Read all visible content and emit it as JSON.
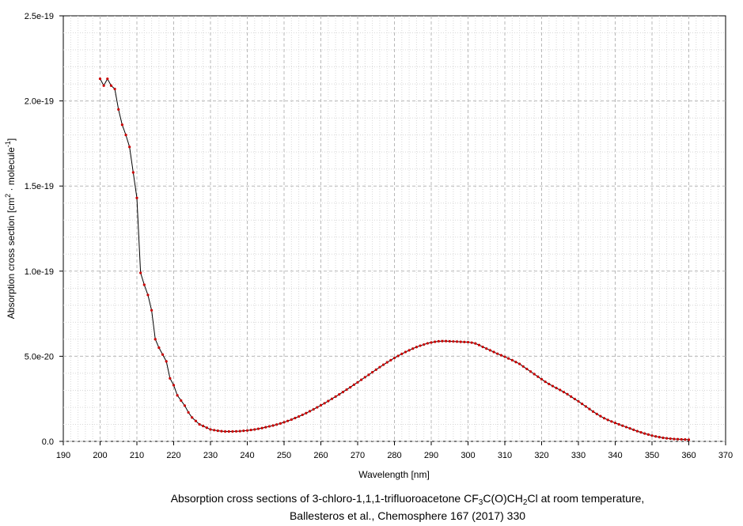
{
  "chart_data": {
    "type": "line",
    "xlabel": "Wavelength [nm]",
    "ylabel_parts": [
      "Absorption cross section [cm",
      "2",
      " · molecule",
      "-1",
      "]"
    ],
    "xlim": [
      190,
      370
    ],
    "ylim": [
      0,
      2.5e-19
    ],
    "x_ticks": [
      190,
      200,
      210,
      220,
      230,
      240,
      250,
      260,
      270,
      280,
      290,
      300,
      310,
      320,
      330,
      340,
      350,
      360,
      370
    ],
    "y_ticks": [
      0,
      5e-20,
      1e-19,
      1.5e-19,
      2e-19,
      2.5e-19
    ],
    "y_tick_labels": [
      "0.0",
      "5.0e-20",
      "1.0e-19",
      "1.5e-19",
      "2.0e-19",
      "2.5e-19"
    ],
    "grid": true,
    "line_color": "#000000",
    "marker_color": "#cc0000",
    "series": [
      {
        "x": [
          200,
          201,
          202,
          203,
          204,
          205,
          206,
          207,
          208,
          209,
          210,
          211,
          212,
          213,
          214,
          215,
          216,
          217,
          218,
          219,
          220,
          221,
          222,
          223,
          224,
          225,
          226,
          227,
          228,
          229,
          230,
          231,
          232,
          233,
          234,
          235,
          236,
          237,
          238,
          239,
          240,
          241,
          242,
          243,
          244,
          245,
          246,
          247,
          248,
          249,
          250,
          251,
          252,
          253,
          254,
          255,
          256,
          257,
          258,
          259,
          260,
          261,
          262,
          263,
          264,
          265,
          266,
          267,
          268,
          269,
          270,
          271,
          272,
          273,
          274,
          275,
          276,
          277,
          278,
          279,
          280,
          281,
          282,
          283,
          284,
          285,
          286,
          287,
          288,
          289,
          290,
          291,
          292,
          293,
          294,
          295,
          296,
          297,
          298,
          299,
          300,
          301,
          302,
          303,
          304,
          305,
          306,
          307,
          308,
          309,
          310,
          311,
          312,
          313,
          314,
          315,
          316,
          317,
          318,
          319,
          320,
          321,
          322,
          323,
          324,
          325,
          326,
          327,
          328,
          329,
          330,
          331,
          332,
          333,
          334,
          335,
          336,
          337,
          338,
          339,
          340,
          341,
          342,
          343,
          344,
          345,
          346,
          347,
          348,
          349,
          350,
          351,
          352,
          353,
          354,
          355,
          356,
          357,
          358,
          359,
          360
        ],
        "values": [
          2.13e-19,
          2.09e-19,
          2.13e-19,
          2.09e-19,
          2.07e-19,
          1.95e-19,
          1.86e-19,
          1.8e-19,
          1.73e-19,
          1.58e-19,
          1.43e-19,
          9.9e-20,
          9.2e-20,
          8.6e-20,
          7.7e-20,
          6e-20,
          5.5e-20,
          5.1e-20,
          4.7e-20,
          3.7e-20,
          3.3e-20,
          2.7e-20,
          2.4e-20,
          2.1e-20,
          1.7e-20,
          1.4e-20,
          1.2e-20,
          1e-20,
          9e-21,
          8e-21,
          7e-21,
          6.6e-21,
          6.2e-21,
          6e-21,
          5.8e-21,
          5.8e-21,
          5.8e-21,
          5.9e-21,
          6e-21,
          6.2e-21,
          6.4e-21,
          6.7e-21,
          7e-21,
          7.4e-21,
          7.8e-21,
          8.3e-21,
          8.8e-21,
          9.3e-21,
          9.9e-21,
          1.05e-20,
          1.12e-20,
          1.2e-20,
          1.28e-20,
          1.37e-20,
          1.46e-20,
          1.56e-20,
          1.66e-20,
          1.77e-20,
          1.88e-20,
          2e-20,
          2.12e-20,
          2.24e-20,
          2.37e-20,
          2.5e-20,
          2.63e-20,
          2.76e-20,
          2.9e-20,
          3.04e-20,
          3.18e-20,
          3.33e-20,
          3.47e-20,
          3.62e-20,
          3.77e-20,
          3.91e-20,
          4.06e-20,
          4.21e-20,
          4.36e-20,
          4.5e-20,
          4.64e-20,
          4.77e-20,
          4.9e-20,
          5.02e-20,
          5.14e-20,
          5.25e-20,
          5.35e-20,
          5.45e-20,
          5.54e-20,
          5.62e-20,
          5.69e-20,
          5.76e-20,
          5.81e-20,
          5.85e-20,
          5.88e-20,
          5.89e-20,
          5.89e-20,
          5.88e-20,
          5.87e-20,
          5.86e-20,
          5.85e-20,
          5.84e-20,
          5.83e-20,
          5.8e-20,
          5.75e-20,
          5.66e-20,
          5.55e-20,
          5.45e-20,
          5.35e-20,
          5.25e-20,
          5.15e-20,
          5.06e-20,
          4.97e-20,
          4.87e-20,
          4.77e-20,
          4.66e-20,
          4.55e-20,
          4.4e-20,
          4.25e-20,
          4.1e-20,
          3.95e-20,
          3.8e-20,
          3.65e-20,
          3.5e-20,
          3.37e-20,
          3.25e-20,
          3.13e-20,
          3.02e-20,
          2.9e-20,
          2.77e-20,
          2.63e-20,
          2.49e-20,
          2.35e-20,
          2.2e-20,
          2.05e-20,
          1.9e-20,
          1.75e-20,
          1.61e-20,
          1.48e-20,
          1.36e-20,
          1.26e-20,
          1.17e-20,
          1.08e-20,
          1e-20,
          9.2e-21,
          8.4e-21,
          7.6e-21,
          6.8e-21,
          6e-21,
          5.3e-21,
          4.6e-21,
          4e-21,
          3.4e-21,
          2.9e-21,
          2.5e-21,
          2.1e-21,
          1.8e-21,
          1.6e-21,
          1.4e-21,
          1.3e-21,
          1.2e-21,
          1.1e-21,
          1e-21
        ]
      }
    ]
  },
  "caption": {
    "line1_parts": [
      "Absorption cross sections of 3-chloro-1,1,1-trifluoroacetone CF",
      "3",
      "C(O)CH",
      "2",
      "Cl at room temperature,"
    ],
    "line2": "Ballesteros et al., Chemosphere 167 (2017) 330"
  }
}
